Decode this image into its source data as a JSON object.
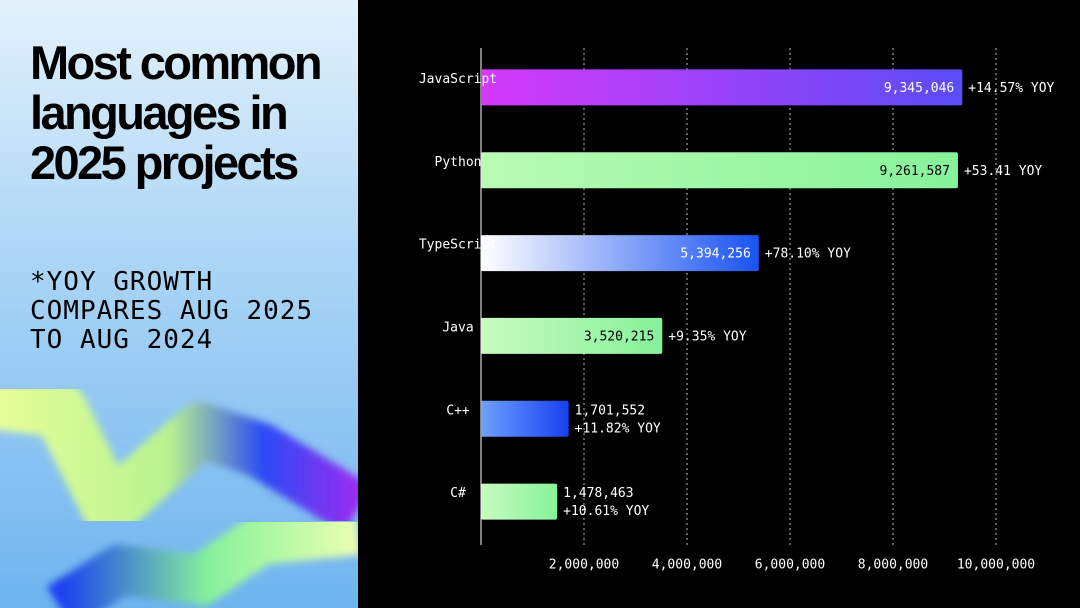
{
  "chart_data": {
    "type": "bar",
    "orientation": "horizontal",
    "title": "Most common languages in 2025 projects",
    "subtitle": "*YOY GROWTH COMPARES AUG 2025 TO AUG 2024",
    "categories": [
      "JavaScript",
      "Python",
      "TypeScript",
      "Java",
      "C++",
      "C#"
    ],
    "values": [
      9345046,
      9261587,
      5394256,
      3520215,
      1701552,
      1478463
    ],
    "value_labels": [
      "9,345,046",
      "9,261,587",
      "5,394,256",
      "3,520,215",
      "1,701,552",
      "1,478,463"
    ],
    "yoy_labels": [
      "+14.57% YOY",
      "+53.41 YOY",
      "+78.10% YOY",
      "+9.35% YOY",
      "+11.82% YOY",
      "+10.61% YOY"
    ],
    "colors": [
      [
        "#d63af9",
        "#5a4cf6"
      ],
      [
        "#b9fbb5",
        "#86f29a"
      ],
      [
        "#ffffff",
        "#1a52f2"
      ],
      [
        "#c8fbc0",
        "#86f29a"
      ],
      [
        "#6fa0ff",
        "#1a3ff0"
      ],
      [
        "#c8fbc0",
        "#86f29a"
      ]
    ],
    "xlim": [
      0,
      10000000
    ],
    "xticks": [
      {
        "value": 2000000,
        "label": "2,000,000"
      },
      {
        "value": 4000000,
        "label": "4,000,000"
      },
      {
        "value": 6000000,
        "label": "6,000,000"
      },
      {
        "value": 8000000,
        "label": "8,000,000"
      },
      {
        "value": 10000000,
        "label": "10,000,000"
      }
    ],
    "grid": true
  }
}
